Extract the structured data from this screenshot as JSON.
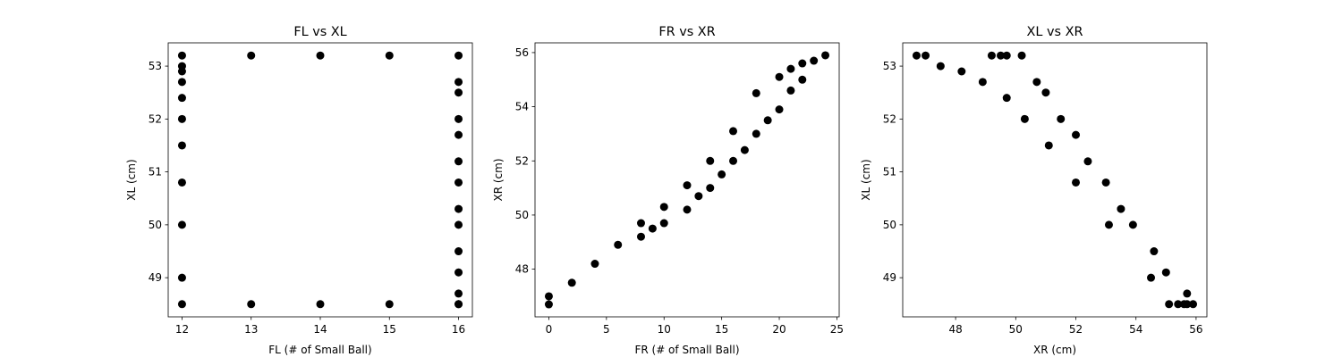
{
  "colors": {
    "marker": "#000000",
    "axes": "#000000",
    "background": "#ffffff"
  },
  "chart_data": [
    {
      "type": "scatter",
      "title": "FL vs XL",
      "xlabel": "FL (# of Small Ball)",
      "ylabel": "XL (cm)",
      "xlim": [
        11.8,
        16.2
      ],
      "ylim": [
        48.26,
        53.44
      ],
      "xticks": [
        12,
        13,
        14,
        15,
        16
      ],
      "yticks": [
        49,
        50,
        51,
        52,
        53
      ],
      "grid": false,
      "x": [
        12,
        12,
        12,
        12,
        12,
        12,
        12,
        12,
        12,
        12,
        12,
        13,
        13,
        14,
        14,
        15,
        15,
        16,
        16,
        16,
        16,
        16,
        16,
        16,
        16,
        16,
        16,
        16,
        16,
        16,
        16
      ],
      "y": [
        53.2,
        53.0,
        52.9,
        52.7,
        52.4,
        52.0,
        51.5,
        50.8,
        50.0,
        49.0,
        48.5,
        53.2,
        48.5,
        53.2,
        48.5,
        53.2,
        48.5,
        53.2,
        52.7,
        52.5,
        52.0,
        51.7,
        51.2,
        50.8,
        50.3,
        50.0,
        49.5,
        49.1,
        48.7,
        48.5,
        48.5
      ]
    },
    {
      "type": "scatter",
      "title": "FR vs XR",
      "xlabel": "FR (# of Small Ball)",
      "ylabel": "XR (cm)",
      "xlim": [
        -1.2,
        25.2
      ],
      "ylim": [
        46.24,
        56.36
      ],
      "xticks": [
        0,
        5,
        10,
        15,
        20,
        25
      ],
      "yticks": [
        48,
        50,
        52,
        54,
        56
      ],
      "grid": false,
      "x": [
        0,
        0,
        2,
        4,
        6,
        8,
        8,
        9,
        10,
        10,
        12,
        12,
        13,
        14,
        14,
        15,
        16,
        16,
        17,
        18,
        18,
        19,
        20,
        20,
        21,
        21,
        22,
        22,
        23,
        24
      ],
      "y": [
        46.7,
        47.0,
        47.5,
        48.2,
        48.9,
        49.2,
        49.7,
        49.5,
        49.7,
        50.3,
        50.2,
        51.1,
        50.7,
        51.0,
        52.0,
        51.5,
        52.0,
        53.1,
        52.4,
        53.0,
        54.5,
        53.5,
        53.9,
        55.1,
        54.6,
        55.4,
        55.0,
        55.6,
        55.7,
        55.9
      ]
    },
    {
      "type": "scatter",
      "title": "XL vs XR",
      "xlabel": "XR (cm)",
      "ylabel": "XL (cm)",
      "xlim": [
        46.24,
        56.36
      ],
      "ylim": [
        48.26,
        53.44
      ],
      "xticks": [
        48,
        50,
        52,
        54,
        56
      ],
      "yticks": [
        49,
        50,
        51,
        52,
        53
      ],
      "grid": false,
      "x": [
        46.7,
        47.0,
        47.5,
        48.2,
        48.9,
        49.2,
        49.5,
        49.7,
        49.7,
        50.2,
        50.3,
        50.7,
        51.0,
        51.1,
        51.5,
        52.0,
        52.0,
        52.4,
        53.0,
        53.1,
        53.5,
        53.9,
        54.5,
        54.6,
        55.0,
        55.1,
        55.4,
        55.6,
        55.7,
        55.7,
        55.9
      ],
      "y": [
        53.2,
        53.2,
        53.0,
        52.9,
        52.7,
        53.2,
        53.2,
        53.2,
        52.4,
        53.2,
        52.0,
        52.7,
        52.5,
        51.5,
        52.0,
        51.7,
        50.8,
        51.2,
        50.8,
        50.0,
        50.3,
        50.0,
        49.0,
        49.5,
        49.1,
        48.5,
        48.5,
        48.5,
        48.5,
        48.7,
        48.5
      ]
    }
  ]
}
